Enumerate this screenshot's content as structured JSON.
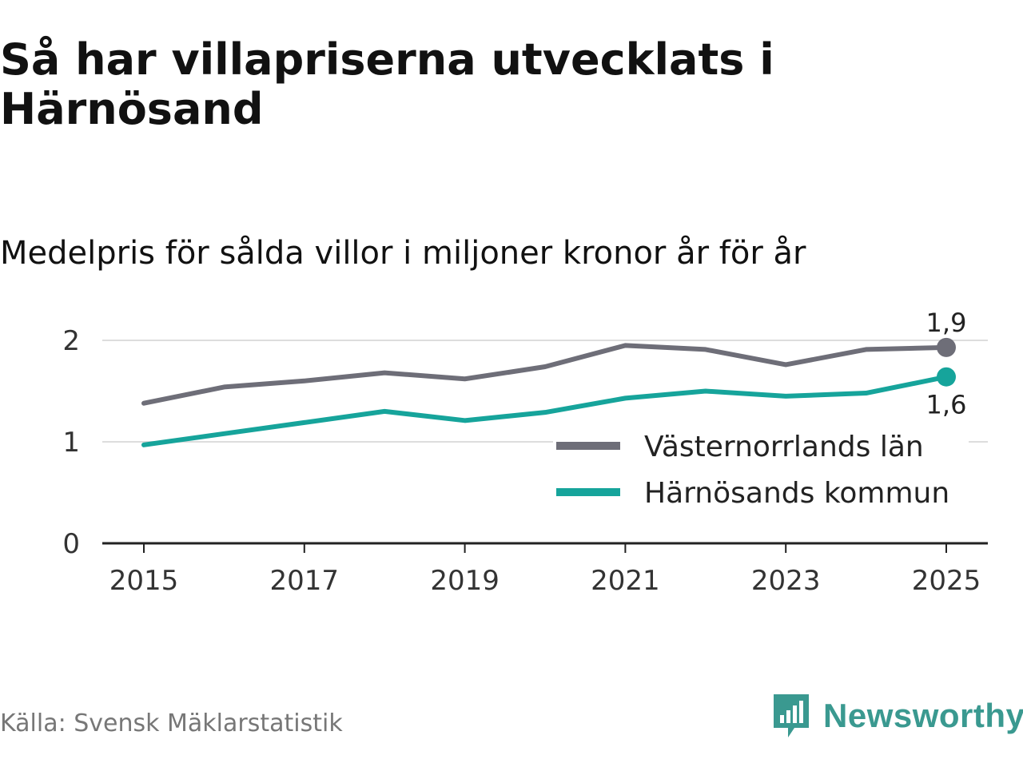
{
  "title": "Så har villapriserna utvecklats i Härnösand",
  "subtitle": "Medelpris för sålda villor i miljoner kronor år för år",
  "source": "Källa: Svensk Mäklarstatistik",
  "brand": {
    "name": "Newsworthy",
    "color": "#3a9990",
    "icon": "newsworthy-chart-logo-icon"
  },
  "chart_data": {
    "type": "line",
    "x": [
      2015,
      2016,
      2017,
      2018,
      2019,
      2020,
      2021,
      2022,
      2023,
      2024,
      2025
    ],
    "xticks": [
      "2015",
      "2017",
      "2019",
      "2021",
      "2023",
      "2025"
    ],
    "yticks": [
      "0",
      "1",
      "2"
    ],
    "ylim": [
      0,
      2.3
    ],
    "grid": true,
    "legend_position": "bottom-right",
    "series": [
      {
        "name": "Västernorrlands län",
        "color": "#6e6e78",
        "values": [
          1.38,
          1.54,
          1.6,
          1.68,
          1.62,
          1.74,
          1.95,
          1.91,
          1.76,
          1.91,
          1.93
        ],
        "end_label": "1,9"
      },
      {
        "name": "Härnösands kommun",
        "color": "#16a49b",
        "values": [
          0.97,
          1.08,
          1.19,
          1.3,
          1.21,
          1.29,
          1.43,
          1.5,
          1.45,
          1.48,
          1.64
        ],
        "end_label": "1,6"
      }
    ]
  }
}
